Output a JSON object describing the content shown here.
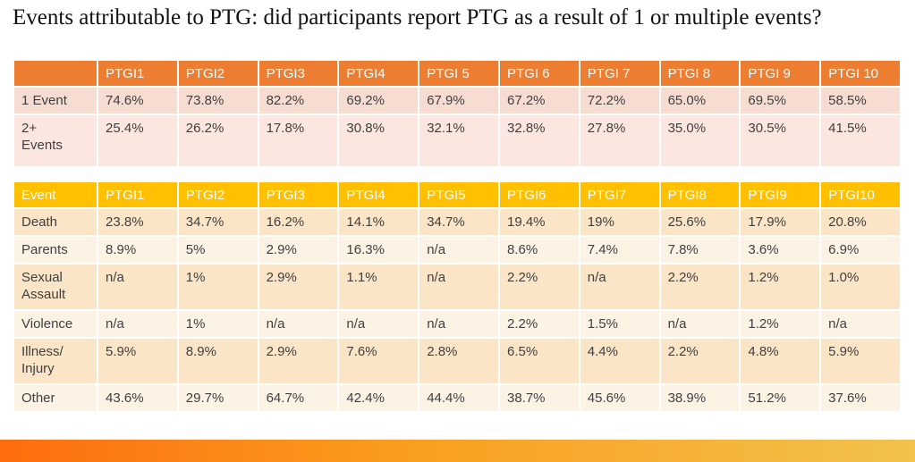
{
  "title": "Events attributable to PTG: did participants report PTG as a result of 1 or multiple events?",
  "table1": {
    "name": "events-count-table",
    "headers": [
      "",
      "PTGI1",
      "PTGI2",
      "PTGI3",
      "PTGI4",
      "PTGI 5",
      "PTGI 6",
      "PTGI 7",
      "PTGI 8",
      "PTGI 9",
      "PTGI 10"
    ],
    "rows": [
      {
        "label": "1 Event",
        "values": [
          "74.6%",
          "73.8%",
          "82.2%",
          "69.2%",
          "67.9%",
          "67.2%",
          "72.2%",
          "65.0%",
          "69.5%",
          "58.5%"
        ]
      },
      {
        "label": "2+\nEvents",
        "values": [
          "25.4%",
          "26.2%",
          "17.8%",
          "30.8%",
          "32.1%",
          "32.8%",
          "27.8%",
          "35.0%",
          "30.5%",
          "41.5%"
        ]
      }
    ]
  },
  "table2": {
    "name": "event-type-table",
    "headers": [
      "Event",
      "PTGI1",
      "PTGI2",
      "PTGI3",
      "PTGI4",
      "PTGI5",
      "PTGI6",
      "PTGI7",
      "PTGI8",
      "PTGI9",
      "PTGI10"
    ],
    "rows": [
      {
        "label": "Death",
        "values": [
          "23.8%",
          "34.7%",
          "16.2%",
          "14.1%",
          "34.7%",
          "19.4%",
          "19%",
          "25.6%",
          "17.9%",
          "20.8%"
        ]
      },
      {
        "label": "Parents",
        "values": [
          "8.9%",
          "5%",
          "2.9%",
          "16.3%",
          "n/a",
          "8.6%",
          "7.4%",
          "7.8%",
          "3.6%",
          "6.9%"
        ]
      },
      {
        "label": "Sexual\nAssault",
        "values": [
          "n/a",
          "1%",
          "2.9%",
          "1.1%",
          "n/a",
          "2.2%",
          "n/a",
          "2.2%",
          "1.2%",
          "1.0%"
        ]
      },
      {
        "label": "Violence",
        "values": [
          "n/a",
          "1%",
          "n/a",
          "n/a",
          "n/a",
          "2.2%",
          "1.5%",
          "n/a",
          "1.2%",
          "n/a"
        ]
      },
      {
        "label": "Illness/\nInjury",
        "values": [
          "5.9%",
          "8.9%",
          "2.9%",
          "7.6%",
          "2.8%",
          "6.5%",
          "4.4%",
          "2.2%",
          "4.8%",
          "5.9%"
        ]
      },
      {
        "label": "Other",
        "values": [
          "43.6%",
          "29.7%",
          "64.7%",
          "42.4%",
          "44.4%",
          "38.7%",
          "45.6%",
          "38.9%",
          "51.2%",
          "37.6%"
        ]
      }
    ]
  },
  "colors": {
    "table1_header_bg": "#ed7d31",
    "table1_band_dark": "#f7dcd2",
    "table1_band_light": "#fbe7df",
    "table2_header_bg": "#ffc000",
    "table2_band_dark": "#fbe5c7",
    "table2_band_light": "#fdf3e5",
    "header_text": "#ffffff",
    "cell_text": "#404040",
    "bottom_bar_gradient_left": "#fd6d0d",
    "bottom_bar_gradient_right": "#f2c24b"
  }
}
